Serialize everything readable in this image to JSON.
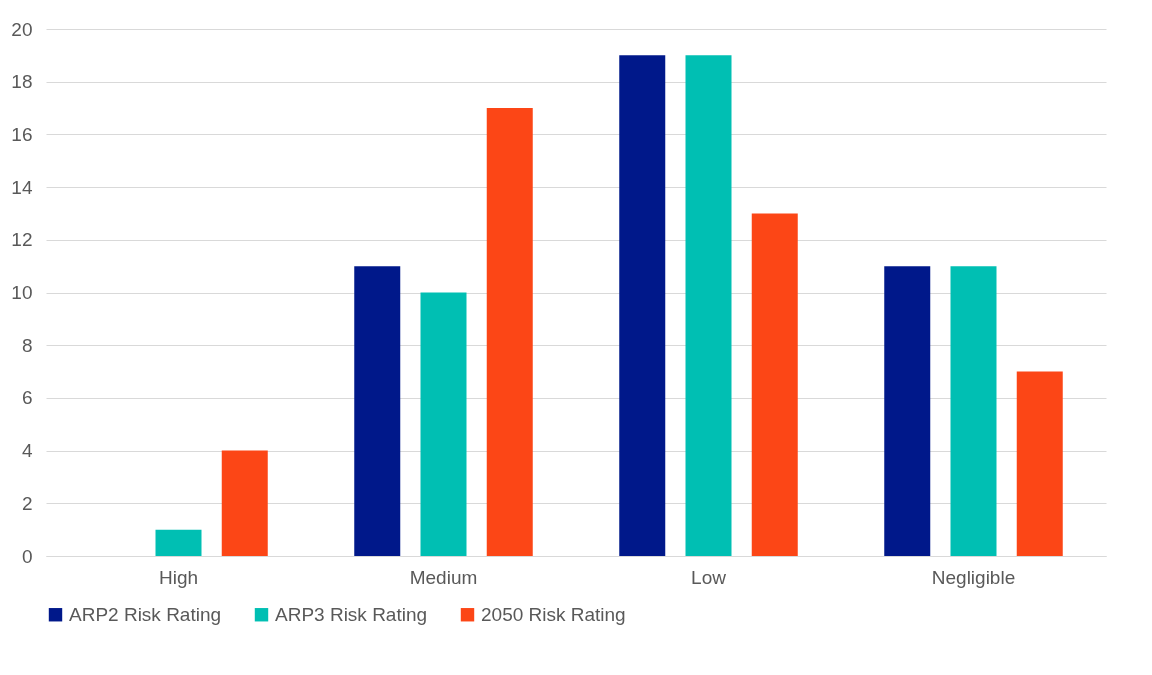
{
  "chart_data": {
    "type": "bar",
    "categories": [
      "High",
      "Medium",
      "Low",
      "Negligible"
    ],
    "series": [
      {
        "name": "ARP2 Risk Rating",
        "color": "#00188a",
        "values": [
          0,
          11,
          19,
          11
        ]
      },
      {
        "name": "ARP3 Risk Rating",
        "color": "#00bfb3",
        "values": [
          1,
          10,
          19,
          11
        ]
      },
      {
        "name": "2050 Risk Rating",
        "color": "#fc4616",
        "values": [
          4,
          17,
          13,
          7
        ]
      }
    ],
    "ylim": [
      0,
      20
    ],
    "yticks": [
      0,
      2,
      4,
      6,
      8,
      10,
      12,
      14,
      16,
      18,
      20
    ],
    "grid": "y",
    "legend": "bottom"
  }
}
